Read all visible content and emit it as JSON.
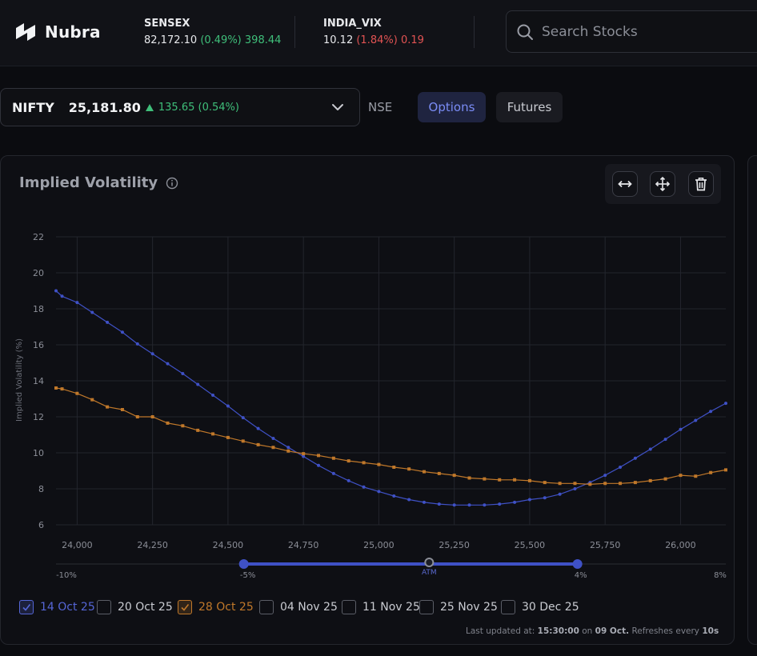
{
  "header": {
    "brand": "Nubra",
    "tickers": [
      {
        "name": "SENSEX",
        "price": "82,172.10",
        "pct": "(0.49%)",
        "change": "398.44",
        "dir": "up"
      },
      {
        "name": "INDIA_VIX",
        "price": "10.12",
        "pct": "(1.84%)",
        "change": "0.19",
        "dir": "down"
      }
    ],
    "search_placeholder": "Search Stocks"
  },
  "symbol": {
    "name": "NIFTY",
    "price": "25,181.80",
    "change": "135.65 (0.54%)",
    "exchange": "NSE"
  },
  "segments": {
    "options": "Options",
    "futures": "Futures",
    "active": "Options"
  },
  "card": {
    "title": "Implied Volatility",
    "tools": [
      "expand-horizontal-icon",
      "move-icon",
      "trash-icon"
    ]
  },
  "chart_data": {
    "type": "line",
    "ylabel": "Implied Volatility (%)",
    "ylim": [
      6,
      22
    ],
    "yticks": [
      "6",
      "8",
      "10",
      "12",
      "14",
      "16",
      "18",
      "20",
      "22"
    ],
    "xlim": [
      23930,
      26150
    ],
    "xticks": [
      "24,000",
      "24,250",
      "24,500",
      "24,750",
      "25,000",
      "25,250",
      "25,500",
      "25,750",
      "26,000"
    ],
    "grid": true,
    "series": [
      {
        "name": "14 Oct 25",
        "color": "#3f51c6",
        "marker": "circle",
        "x": [
          23930,
          23950,
          24000,
          24050,
          24100,
          24150,
          24200,
          24250,
          24300,
          24350,
          24400,
          24450,
          24500,
          24550,
          24600,
          24650,
          24700,
          24750,
          24800,
          24850,
          24900,
          24950,
          25000,
          25050,
          25100,
          25150,
          25200,
          25250,
          25300,
          25350,
          25400,
          25450,
          25500,
          25550,
          25600,
          25650,
          25700,
          25750,
          25800,
          25850,
          25900,
          25950,
          26000,
          26050,
          26100,
          26150
        ],
        "y": [
          19.0,
          18.7,
          18.35,
          17.8,
          17.25,
          16.7,
          16.05,
          15.5,
          14.95,
          14.4,
          13.8,
          13.2,
          12.6,
          11.95,
          11.35,
          10.8,
          10.3,
          9.8,
          9.3,
          8.85,
          8.45,
          8.1,
          7.85,
          7.6,
          7.4,
          7.25,
          7.15,
          7.1,
          7.1,
          7.1,
          7.15,
          7.25,
          7.4,
          7.5,
          7.7,
          8.0,
          8.35,
          8.75,
          9.2,
          9.7,
          10.2,
          10.75,
          11.3,
          11.8,
          12.3,
          12.75
        ]
      },
      {
        "name": "28 Oct 25",
        "color": "#c0782a",
        "marker": "square",
        "x": [
          23930,
          23950,
          24000,
          24050,
          24100,
          24150,
          24200,
          24250,
          24300,
          24350,
          24400,
          24450,
          24500,
          24550,
          24600,
          24650,
          24700,
          24750,
          24800,
          24850,
          24900,
          24950,
          25000,
          25050,
          25100,
          25150,
          25200,
          25250,
          25300,
          25350,
          25400,
          25450,
          25500,
          25550,
          25600,
          25650,
          25700,
          25750,
          25800,
          25850,
          25900,
          25950,
          26000,
          26050,
          26100,
          26150
        ],
        "y": [
          13.6,
          13.55,
          13.3,
          12.95,
          12.55,
          12.4,
          12.0,
          12.0,
          11.65,
          11.5,
          11.25,
          11.05,
          10.85,
          10.65,
          10.45,
          10.3,
          10.1,
          9.95,
          9.85,
          9.7,
          9.55,
          9.45,
          9.35,
          9.2,
          9.1,
          8.95,
          8.85,
          8.75,
          8.6,
          8.55,
          8.5,
          8.5,
          8.45,
          8.35,
          8.3,
          8.3,
          8.25,
          8.3,
          8.3,
          8.35,
          8.45,
          8.55,
          8.75,
          8.7,
          8.9,
          9.05
        ]
      }
    ]
  },
  "range_slider": {
    "labels": {
      "min": "-10%",
      "low": "-5%",
      "center": "ATM",
      "high": "4%",
      "max": "8%"
    },
    "low_pct": -5,
    "high_pct": 4
  },
  "expiries": [
    {
      "label": "14 Oct 25",
      "checked": true,
      "color": "#5566d6"
    },
    {
      "label": "20 Oct 25",
      "checked": false,
      "color": "#c9cbd1"
    },
    {
      "label": "28 Oct 25",
      "checked": true,
      "color": "#c0782a"
    },
    {
      "label": "04 Nov 25",
      "checked": false,
      "color": "#c9cbd1"
    },
    {
      "label": "11 Nov 25",
      "checked": false,
      "color": "#c9cbd1"
    },
    {
      "label": "25 Nov 25",
      "checked": false,
      "color": "#c9cbd1"
    },
    {
      "label": "30 Dec 25",
      "checked": false,
      "color": "#c9cbd1"
    }
  ],
  "footer": {
    "prefix": "Last updated at:",
    "time": "15:30:00",
    "on": "on",
    "date": "09 Oct.",
    "refresh": "Refreshes every",
    "interval": "10s"
  }
}
